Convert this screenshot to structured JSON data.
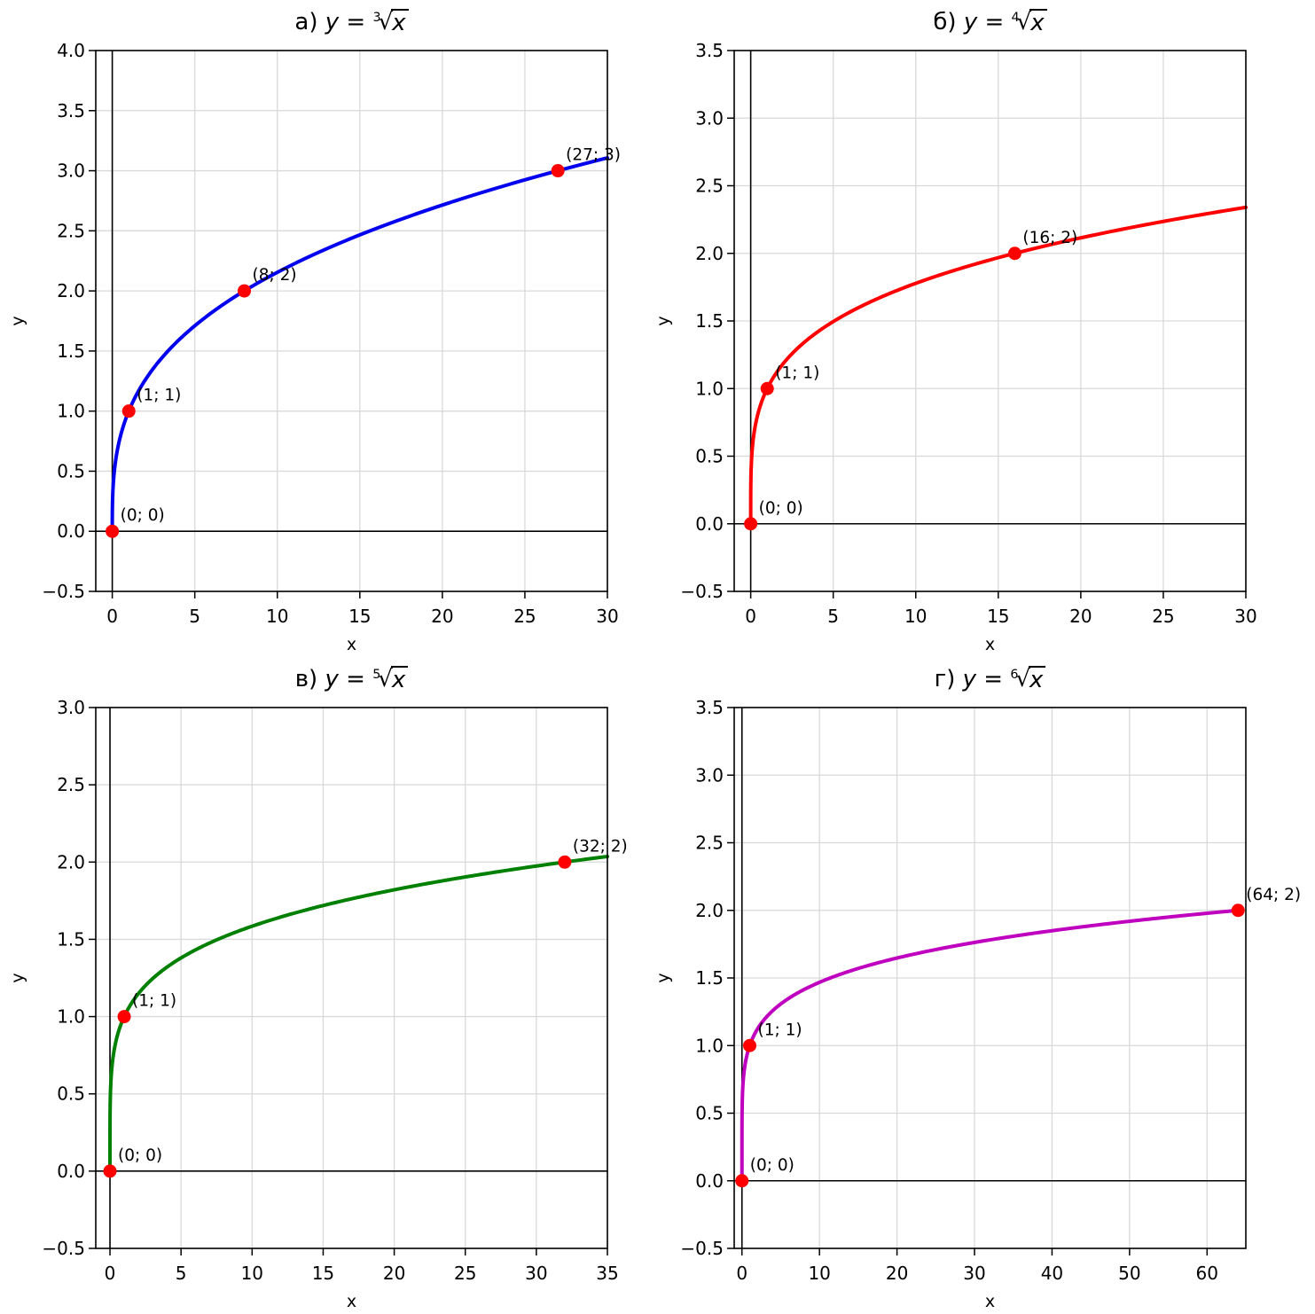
{
  "figure": {
    "background": "#ffffff",
    "marker_color": "#ff0000",
    "grid_color": "#d9d9d9",
    "axis_color": "#000000"
  },
  "chart_data": [
    {
      "type": "line",
      "title": "а) y = ³√x",
      "title_parts": {
        "prefix": "а)",
        "lhs": "y",
        "eq": "=",
        "index": "3",
        "radical": "√",
        "radicand": "x"
      },
      "root": 3,
      "line_color": "#0000ee",
      "marker_color": "#ff0000",
      "grid_color": "#d9d9d9",
      "xlabel": "x",
      "ylabel": "y",
      "xlim": [
        -1,
        30
      ],
      "ylim": [
        -0.5,
        4.0
      ],
      "xticks": [
        0,
        5,
        10,
        15,
        20,
        25,
        30
      ],
      "yticks": [
        -0.5,
        0.0,
        0.5,
        1.0,
        1.5,
        2.0,
        2.5,
        3.0,
        3.5,
        4.0
      ],
      "curve_x_range": [
        0,
        30
      ],
      "grid": true,
      "points": [
        {
          "x": 0,
          "y": 0,
          "label": "(0; 0)"
        },
        {
          "x": 1,
          "y": 1,
          "label": "(1; 1)"
        },
        {
          "x": 8,
          "y": 2,
          "label": "(8; 2)"
        },
        {
          "x": 27,
          "y": 3,
          "label": "(27; 3)"
        }
      ]
    },
    {
      "type": "line",
      "title": "б) y = ⁴√x",
      "title_parts": {
        "prefix": "б)",
        "lhs": "y",
        "eq": "=",
        "index": "4",
        "radical": "√",
        "radicand": "x"
      },
      "root": 4,
      "line_color": "#ff0000",
      "marker_color": "#ff0000",
      "grid_color": "#d9d9d9",
      "xlabel": "x",
      "ylabel": "y",
      "xlim": [
        -1,
        30
      ],
      "ylim": [
        -0.5,
        3.5
      ],
      "xticks": [
        0,
        5,
        10,
        15,
        20,
        25,
        30
      ],
      "yticks": [
        -0.5,
        0.0,
        0.5,
        1.0,
        1.5,
        2.0,
        2.5,
        3.0,
        3.5
      ],
      "curve_x_range": [
        0,
        30
      ],
      "grid": true,
      "points": [
        {
          "x": 0,
          "y": 0,
          "label": "(0; 0)"
        },
        {
          "x": 1,
          "y": 1,
          "label": "(1; 1)"
        },
        {
          "x": 16,
          "y": 2,
          "label": "(16; 2)"
        }
      ]
    },
    {
      "type": "line",
      "title": "в) y = ⁵√x",
      "title_parts": {
        "prefix": "в)",
        "lhs": "y",
        "eq": "=",
        "index": "5",
        "radical": "√",
        "radicand": "x"
      },
      "root": 5,
      "line_color": "#008000",
      "marker_color": "#ff0000",
      "grid_color": "#d9d9d9",
      "xlabel": "x",
      "ylabel": "y",
      "xlim": [
        -1,
        35
      ],
      "ylim": [
        -0.5,
        3.0
      ],
      "xticks": [
        0,
        5,
        10,
        15,
        20,
        25,
        30,
        35
      ],
      "yticks": [
        -0.5,
        0.0,
        0.5,
        1.0,
        1.5,
        2.0,
        2.5,
        3.0
      ],
      "curve_x_range": [
        0,
        35
      ],
      "grid": true,
      "points": [
        {
          "x": 0,
          "y": 0,
          "label": "(0; 0)"
        },
        {
          "x": 1,
          "y": 1,
          "label": "(1; 1)"
        },
        {
          "x": 32,
          "y": 2,
          "label": "(32; 2)"
        }
      ]
    },
    {
      "type": "line",
      "title": "г) y = ⁶√x",
      "title_parts": {
        "prefix": "г)",
        "lhs": "y",
        "eq": "=",
        "index": "6",
        "radical": "√",
        "radicand": "x"
      },
      "root": 6,
      "line_color": "#bf00bf",
      "marker_color": "#ff0000",
      "grid_color": "#d9d9d9",
      "xlabel": "x",
      "ylabel": "y",
      "xlim": [
        -1,
        65
      ],
      "ylim": [
        -0.5,
        3.5
      ],
      "xticks": [
        0,
        10,
        20,
        30,
        40,
        50,
        60
      ],
      "yticks": [
        -0.5,
        0.0,
        0.5,
        1.0,
        1.5,
        2.0,
        2.5,
        3.0,
        3.5
      ],
      "curve_x_range": [
        0,
        64
      ],
      "grid": true,
      "points": [
        {
          "x": 0,
          "y": 0,
          "label": "(0; 0)"
        },
        {
          "x": 1,
          "y": 1,
          "label": "(1; 1)"
        },
        {
          "x": 64,
          "y": 2,
          "label": "(64; 2)"
        }
      ]
    }
  ]
}
